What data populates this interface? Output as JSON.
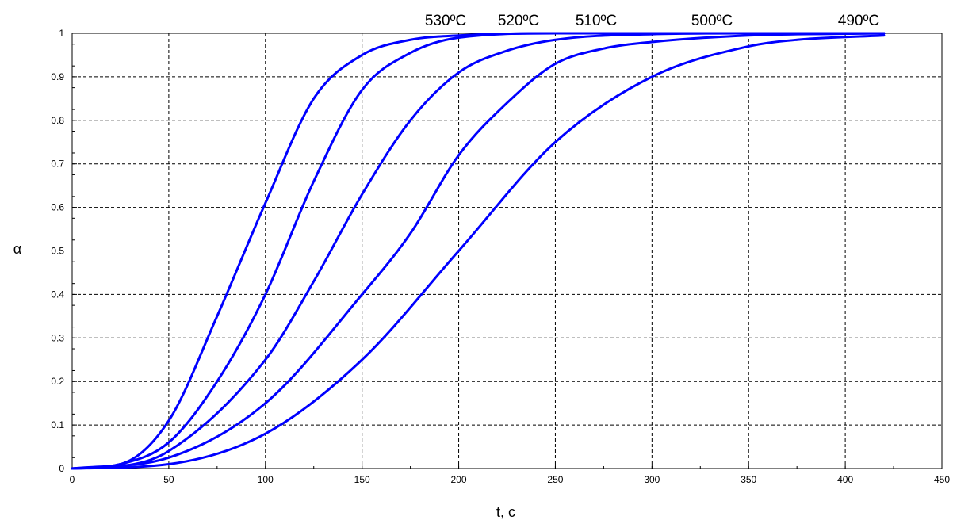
{
  "chart_data": {
    "type": "line",
    "title": "",
    "xlabel": "t, c",
    "ylabel": "α",
    "xlim": [
      0,
      450
    ],
    "ylim": [
      0,
      1
    ],
    "x_ticks": [
      0,
      50,
      100,
      150,
      200,
      250,
      300,
      350,
      400,
      450
    ],
    "y_ticks": [
      0,
      0.1,
      0.2,
      0.3,
      0.4,
      0.5,
      0.6,
      0.7,
      0.8,
      0.9,
      1
    ],
    "grid": true,
    "line_color": "#0000ff",
    "series": [
      {
        "name": "530ºC",
        "x": [
          0,
          25,
          50,
          75,
          100,
          125,
          150,
          175,
          200,
          250,
          300,
          350,
          420
        ],
        "values": [
          0,
          0.01,
          0.11,
          0.35,
          0.61,
          0.85,
          0.95,
          0.985,
          0.995,
          1,
          1,
          1,
          1
        ]
      },
      {
        "name": "520ºC",
        "x": [
          0,
          25,
          50,
          75,
          100,
          125,
          150,
          175,
          200,
          250,
          300,
          350,
          420
        ],
        "values": [
          0,
          0.01,
          0.06,
          0.2,
          0.4,
          0.66,
          0.87,
          0.955,
          0.99,
          1,
          1,
          1,
          1
        ]
      },
      {
        "name": "510ºC",
        "x": [
          0,
          25,
          50,
          100,
          125,
          150,
          175,
          200,
          225,
          250,
          300,
          350,
          420
        ],
        "values": [
          0,
          0.005,
          0.04,
          0.25,
          0.43,
          0.63,
          0.8,
          0.91,
          0.96,
          0.985,
          0.998,
          1,
          1
        ]
      },
      {
        "name": "500ºC",
        "x": [
          0,
          50,
          100,
          150,
          175,
          200,
          225,
          250,
          275,
          300,
          350,
          420
        ],
        "values": [
          0,
          0.025,
          0.15,
          0.4,
          0.54,
          0.72,
          0.84,
          0.93,
          0.965,
          0.98,
          0.995,
          1
        ]
      },
      {
        "name": "490ºC",
        "x": [
          0,
          50,
          100,
          150,
          200,
          250,
          300,
          350,
          375,
          420
        ],
        "values": [
          0,
          0.01,
          0.08,
          0.25,
          0.5,
          0.75,
          0.9,
          0.97,
          0.985,
          0.995
        ]
      }
    ]
  }
}
